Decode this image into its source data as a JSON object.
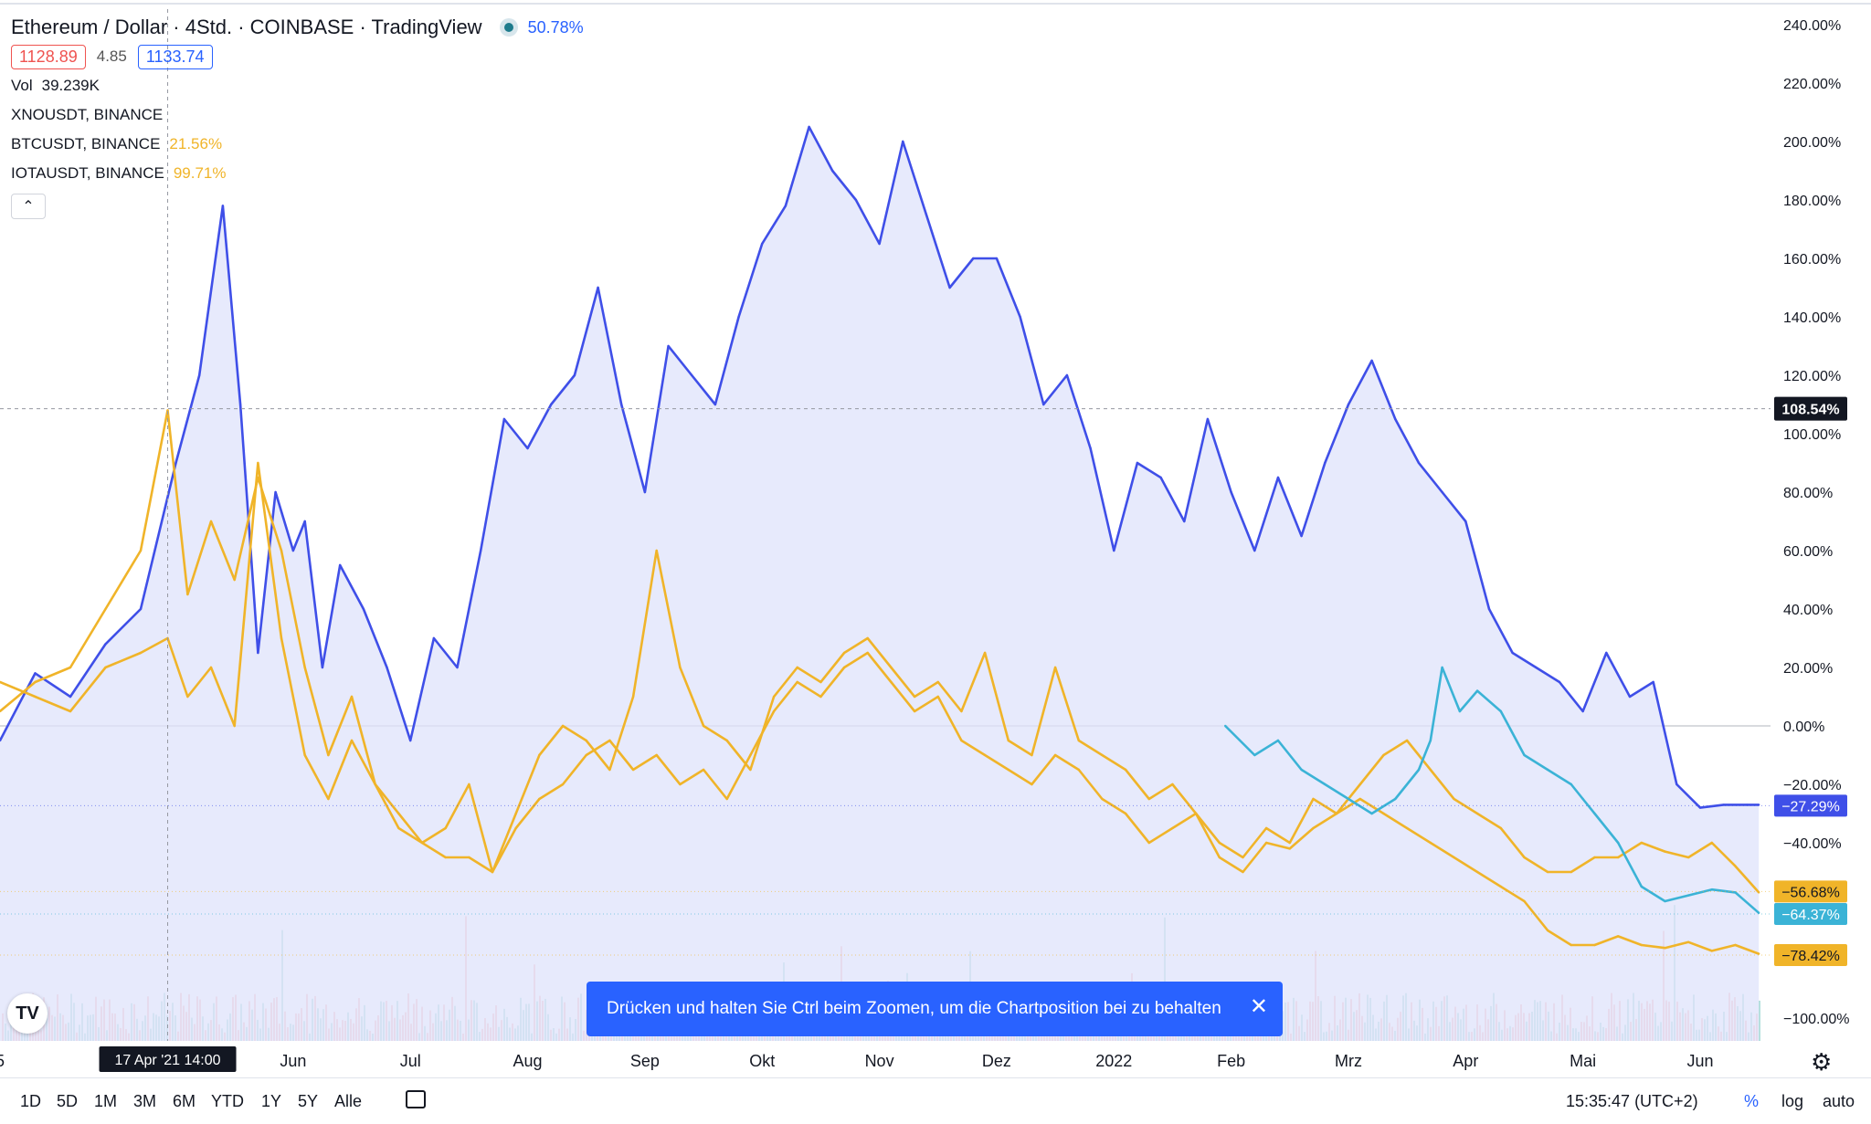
{
  "header": {
    "title": "Ethereum / Dollar · 4Std. · COINBASE · TradingView",
    "change_pct": "50.78%",
    "bid": "1128.89",
    "spread": "4.85",
    "ask": "1133.74",
    "volume_label": "Vol",
    "volume_value": "39.239K",
    "compare_symbols": [
      {
        "name": "XNOUSDT, BINANCE",
        "pct": ""
      },
      {
        "name": "BTCUSDT, BINANCE",
        "pct": "21.56%"
      },
      {
        "name": "IOTAUSDT, BINANCE",
        "pct": "99.71%"
      }
    ],
    "collapse_glyph": "⌃"
  },
  "toast": {
    "text": "Drücken und halten Sie Ctrl beim Zoomen, um die Chartposition bei zu behalten",
    "close": "✕"
  },
  "logo_text": "TV",
  "bottom_bar": {
    "ranges": [
      "1D",
      "5D",
      "1M",
      "3M",
      "6M",
      "YTD",
      "1Y",
      "5Y",
      "Alle"
    ],
    "time": "15:35:47 (UTC+2)",
    "pct_toggle": "%",
    "log_toggle": "log",
    "auto_toggle": "auto"
  },
  "colors": {
    "eth": "#3f4fe8",
    "eth_fill": "#dfe3fb",
    "btc": "#f0b429",
    "iota": "#f0b429",
    "xno": "#3bb3d6",
    "vol_up": "#26a69a",
    "vol_down": "#ef5350"
  },
  "chart_data": {
    "type": "line",
    "y_unit": "%",
    "ylim": [
      -100,
      240
    ],
    "y_ticks": [
      240,
      220,
      200,
      180,
      160,
      140,
      120,
      100,
      80,
      60,
      40,
      20,
      0,
      -20,
      -40,
      -100
    ],
    "y_tick_labels": [
      "240.00%",
      "220.00%",
      "200.00%",
      "180.00%",
      "160.00%",
      "140.00%",
      "120.00%",
      "100.00%",
      "80.00%",
      "60.00%",
      "40.00%",
      "20.00%",
      "0.00%",
      "−20.00%",
      "−40.00%",
      "−100.00%"
    ],
    "x_ticks": [
      0.0,
      2.5,
      3.5,
      4.5,
      5.5,
      6.5,
      7.5,
      8.5,
      9.5,
      10.5,
      11.5,
      12.5,
      13.5,
      14.5
    ],
    "x_tick_labels": [
      "5",
      "Jun",
      "Jul",
      "Aug",
      "Sep",
      "Okt",
      "Nov",
      "Dez",
      "2022",
      "Feb",
      "Mrz",
      "Apr",
      "Mai",
      "Jun"
    ],
    "x_tick_label_colors": [
      "#131722",
      "#131722",
      "#131722",
      "#131722",
      "#131722",
      "#131722",
      "#131722",
      "#131722",
      "#131722",
      "#131722",
      "#131722",
      "#131722",
      "#131722",
      "#131722"
    ],
    "x_range": [
      0,
      15.1
    ],
    "crosshair": {
      "x": 1.43,
      "y": 108.54,
      "x_label": "17 Apr '21   14:00",
      "y_label": "108.54%"
    },
    "last_labels": [
      {
        "value": -27.29,
        "text": "−27.29%",
        "color": "#3f4fe8"
      },
      {
        "value": -56.68,
        "text": "−56.68%",
        "color": "#f0b429"
      },
      {
        "value": -64.37,
        "text": "−64.37%",
        "color": "#3bb3d6"
      },
      {
        "value": -78.42,
        "text": "−78.42%",
        "color": "#f0b429"
      }
    ],
    "series": [
      {
        "name": "Ethereum / Dollar",
        "color": "#3f4fe8",
        "area": true,
        "x": [
          0.0,
          0.3,
          0.6,
          0.9,
          1.2,
          1.5,
          1.7,
          1.9,
          2.05,
          2.2,
          2.35,
          2.5,
          2.6,
          2.75,
          2.9,
          3.1,
          3.3,
          3.5,
          3.7,
          3.9,
          4.1,
          4.3,
          4.5,
          4.7,
          4.9,
          5.1,
          5.3,
          5.5,
          5.7,
          5.9,
          6.1,
          6.3,
          6.5,
          6.7,
          6.9,
          7.1,
          7.3,
          7.5,
          7.7,
          7.9,
          8.1,
          8.3,
          8.5,
          8.7,
          8.9,
          9.1,
          9.3,
          9.5,
          9.7,
          9.9,
          10.1,
          10.3,
          10.5,
          10.7,
          10.9,
          11.1,
          11.3,
          11.5,
          11.7,
          11.9,
          12.1,
          12.3,
          12.5,
          12.7,
          12.9,
          13.1,
          13.3,
          13.5,
          13.7,
          13.9,
          14.1,
          14.3,
          14.5,
          14.7,
          14.9,
          15.0
        ],
        "y": [
          -5,
          18,
          10,
          28,
          40,
          90,
          120,
          178,
          110,
          25,
          80,
          60,
          70,
          20,
          55,
          40,
          20,
          -5,
          30,
          20,
          60,
          105,
          95,
          110,
          120,
          150,
          110,
          80,
          130,
          120,
          110,
          140,
          165,
          178,
          205,
          190,
          180,
          165,
          200,
          175,
          150,
          160,
          160,
          140,
          110,
          120,
          95,
          60,
          90,
          85,
          70,
          105,
          80,
          60,
          85,
          65,
          90,
          110,
          125,
          105,
          90,
          80,
          70,
          40,
          25,
          20,
          15,
          5,
          25,
          10,
          15,
          -20,
          -28,
          -27,
          -27,
          -27
        ]
      },
      {
        "name": "BTCUSDT, BINANCE",
        "color": "#f0b429",
        "x": [
          0.0,
          0.3,
          0.6,
          0.9,
          1.2,
          1.43,
          1.6,
          1.8,
          2.0,
          2.2,
          2.4,
          2.6,
          2.8,
          3.0,
          3.2,
          3.4,
          3.6,
          3.8,
          4.0,
          4.2,
          4.4,
          4.6,
          4.8,
          5.0,
          5.2,
          5.4,
          5.6,
          5.8,
          6.0,
          6.2,
          6.4,
          6.6,
          6.8,
          7.0,
          7.2,
          7.4,
          7.6,
          7.8,
          8.0,
          8.2,
          8.4,
          8.6,
          8.8,
          9.0,
          9.2,
          9.4,
          9.6,
          9.8,
          10.0,
          10.2,
          10.4,
          10.6,
          10.8,
          11.0,
          11.2,
          11.4,
          11.6,
          11.8,
          12.0,
          12.2,
          12.4,
          12.6,
          12.8,
          13.0,
          13.2,
          13.4,
          13.6,
          13.8,
          14.0,
          14.2,
          14.4,
          14.6,
          14.8,
          15.0
        ],
        "y": [
          5,
          15,
          20,
          40,
          60,
          108,
          45,
          70,
          50,
          85,
          60,
          20,
          -10,
          10,
          -20,
          -30,
          -40,
          -35,
          -20,
          -50,
          -30,
          -10,
          0,
          -5,
          -15,
          10,
          60,
          20,
          0,
          -5,
          -15,
          10,
          20,
          15,
          25,
          30,
          20,
          10,
          15,
          5,
          25,
          -5,
          -10,
          20,
          -5,
          -10,
          -15,
          -25,
          -20,
          -30,
          -40,
          -45,
          -35,
          -40,
          -25,
          -30,
          -20,
          -10,
          -5,
          -15,
          -25,
          -30,
          -35,
          -45,
          -50,
          -50,
          -45,
          -45,
          -40,
          -43,
          -45,
          -40,
          -48,
          -57
        ]
      },
      {
        "name": "IOTAUSDT, BINANCE",
        "color": "#f0b429",
        "x": [
          0.0,
          0.3,
          0.6,
          0.9,
          1.2,
          1.43,
          1.6,
          1.8,
          2.0,
          2.2,
          2.4,
          2.6,
          2.8,
          3.0,
          3.2,
          3.4,
          3.6,
          3.8,
          4.0,
          4.2,
          4.4,
          4.6,
          4.8,
          5.0,
          5.2,
          5.4,
          5.6,
          5.8,
          6.0,
          6.2,
          6.4,
          6.6,
          6.8,
          7.0,
          7.2,
          7.4,
          7.6,
          7.8,
          8.0,
          8.2,
          8.4,
          8.6,
          8.8,
          9.0,
          9.2,
          9.4,
          9.6,
          9.8,
          10.0,
          10.2,
          10.4,
          10.6,
          10.8,
          11.0,
          11.2,
          11.4,
          11.6,
          11.8,
          12.0,
          12.2,
          12.4,
          12.6,
          12.8,
          13.0,
          13.2,
          13.4,
          13.6,
          13.8,
          14.0,
          14.2,
          14.4,
          14.6,
          14.8,
          15.0
        ],
        "y": [
          15,
          10,
          5,
          20,
          25,
          30,
          10,
          20,
          0,
          90,
          30,
          -10,
          -25,
          -5,
          -20,
          -35,
          -40,
          -45,
          -45,
          -50,
          -35,
          -25,
          -20,
          -10,
          -5,
          -15,
          -10,
          -20,
          -15,
          -25,
          -10,
          5,
          15,
          10,
          20,
          25,
          15,
          5,
          10,
          -5,
          -10,
          -15,
          -20,
          -10,
          -15,
          -25,
          -30,
          -40,
          -35,
          -30,
          -45,
          -50,
          -40,
          -42,
          -35,
          -30,
          -25,
          -30,
          -35,
          -40,
          -45,
          -50,
          -55,
          -60,
          -70,
          -75,
          -75,
          -72,
          -75,
          -76,
          -74,
          -77,
          -75,
          -78
        ]
      },
      {
        "name": "XNOUSDT, BINANCE",
        "color": "#3bb3d6",
        "x": [
          10.45,
          10.7,
          10.9,
          11.1,
          11.3,
          11.5,
          11.7,
          11.9,
          12.1,
          12.2,
          12.3,
          12.45,
          12.6,
          12.8,
          13.0,
          13.2,
          13.4,
          13.5,
          13.6,
          13.8,
          14.0,
          14.2,
          14.4,
          14.6,
          14.8,
          15.0
        ],
        "y": [
          0,
          -10,
          -5,
          -15,
          -20,
          -25,
          -30,
          -25,
          -15,
          -5,
          20,
          5,
          12,
          5,
          -10,
          -15,
          -20,
          -25,
          -30,
          -40,
          -55,
          -60,
          -58,
          -56,
          -57,
          -64
        ]
      }
    ]
  }
}
